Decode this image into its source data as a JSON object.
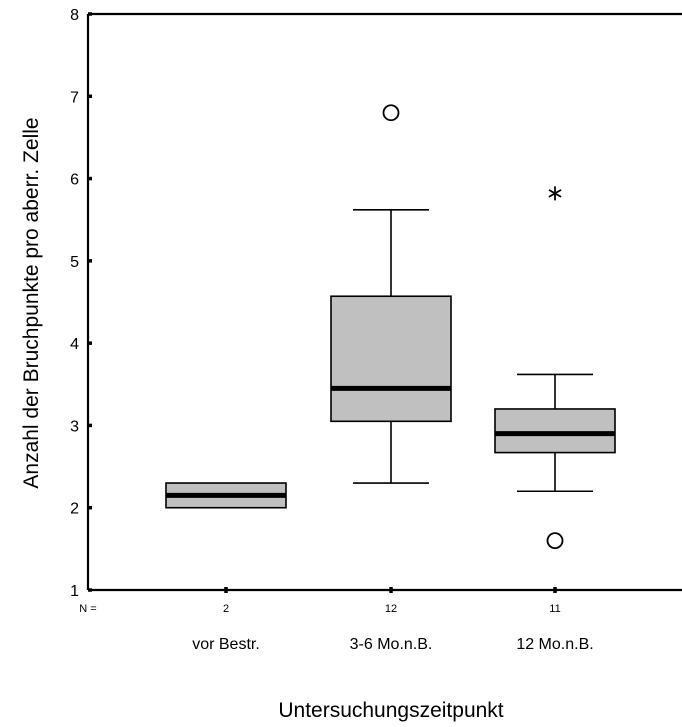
{
  "chart_data": {
    "type": "boxplot",
    "ylabel": "Anzahl der Bruchpunkte pro aberr. Zelle",
    "xlabel": "Untersuchungszeitpunkt",
    "ylim": [
      1,
      8
    ],
    "yticks": [
      1,
      2,
      3,
      4,
      5,
      6,
      7,
      8
    ],
    "n_prefix": "N =",
    "grid": false,
    "groups": [
      {
        "category": "vor Bestr.",
        "n": "2",
        "min": 2.0,
        "q1": 2.0,
        "median": 2.15,
        "q3": 2.3,
        "max": 2.3,
        "outliers": [],
        "extremes": []
      },
      {
        "category": "3-6 Mo.n.B.",
        "n": "12",
        "min": 2.3,
        "q1": 3.05,
        "median": 3.45,
        "q3": 4.57,
        "max": 5.62,
        "outliers": [
          6.8
        ],
        "extremes": []
      },
      {
        "category": "12 Mo.n.B.",
        "n": "11",
        "min": 2.2,
        "q1": 2.67,
        "median": 2.9,
        "q3": 3.2,
        "max": 3.62,
        "outliers": [
          1.6
        ],
        "extremes": [
          5.82
        ]
      }
    ],
    "colors": {
      "box_fill": "#c0c0c0",
      "stroke": "#000000"
    }
  }
}
